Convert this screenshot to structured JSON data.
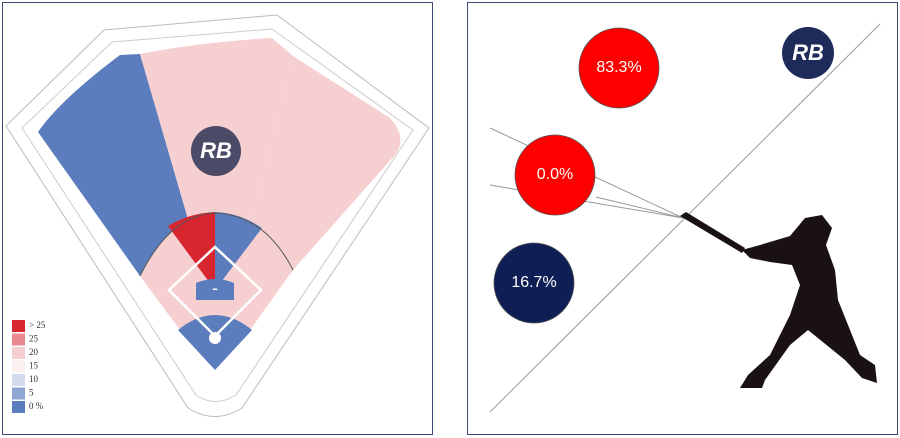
{
  "field": {
    "logo": "RB",
    "infield_label": "-",
    "legend": [
      {
        "label": "> 25",
        "color": "#d7262e"
      },
      {
        "label": "25",
        "color": "#ea8a90"
      },
      {
        "label": "20",
        "color": "#f6cfd1"
      },
      {
        "label": "15",
        "color": "#fbf1f1"
      },
      {
        "label": "10",
        "color": "#d3dcee"
      },
      {
        "label": "5",
        "color": "#8fa6d5"
      },
      {
        "label": "0 %",
        "color": "#5b7dbd"
      }
    ]
  },
  "batted_ball": {
    "logo": "RB",
    "bubbles": [
      {
        "label": "83.3%",
        "color": "#ff0000"
      },
      {
        "label": "0.0%",
        "color": "#ff0000"
      },
      {
        "label": "16.7%",
        "color": "#0f1f55"
      }
    ]
  }
}
